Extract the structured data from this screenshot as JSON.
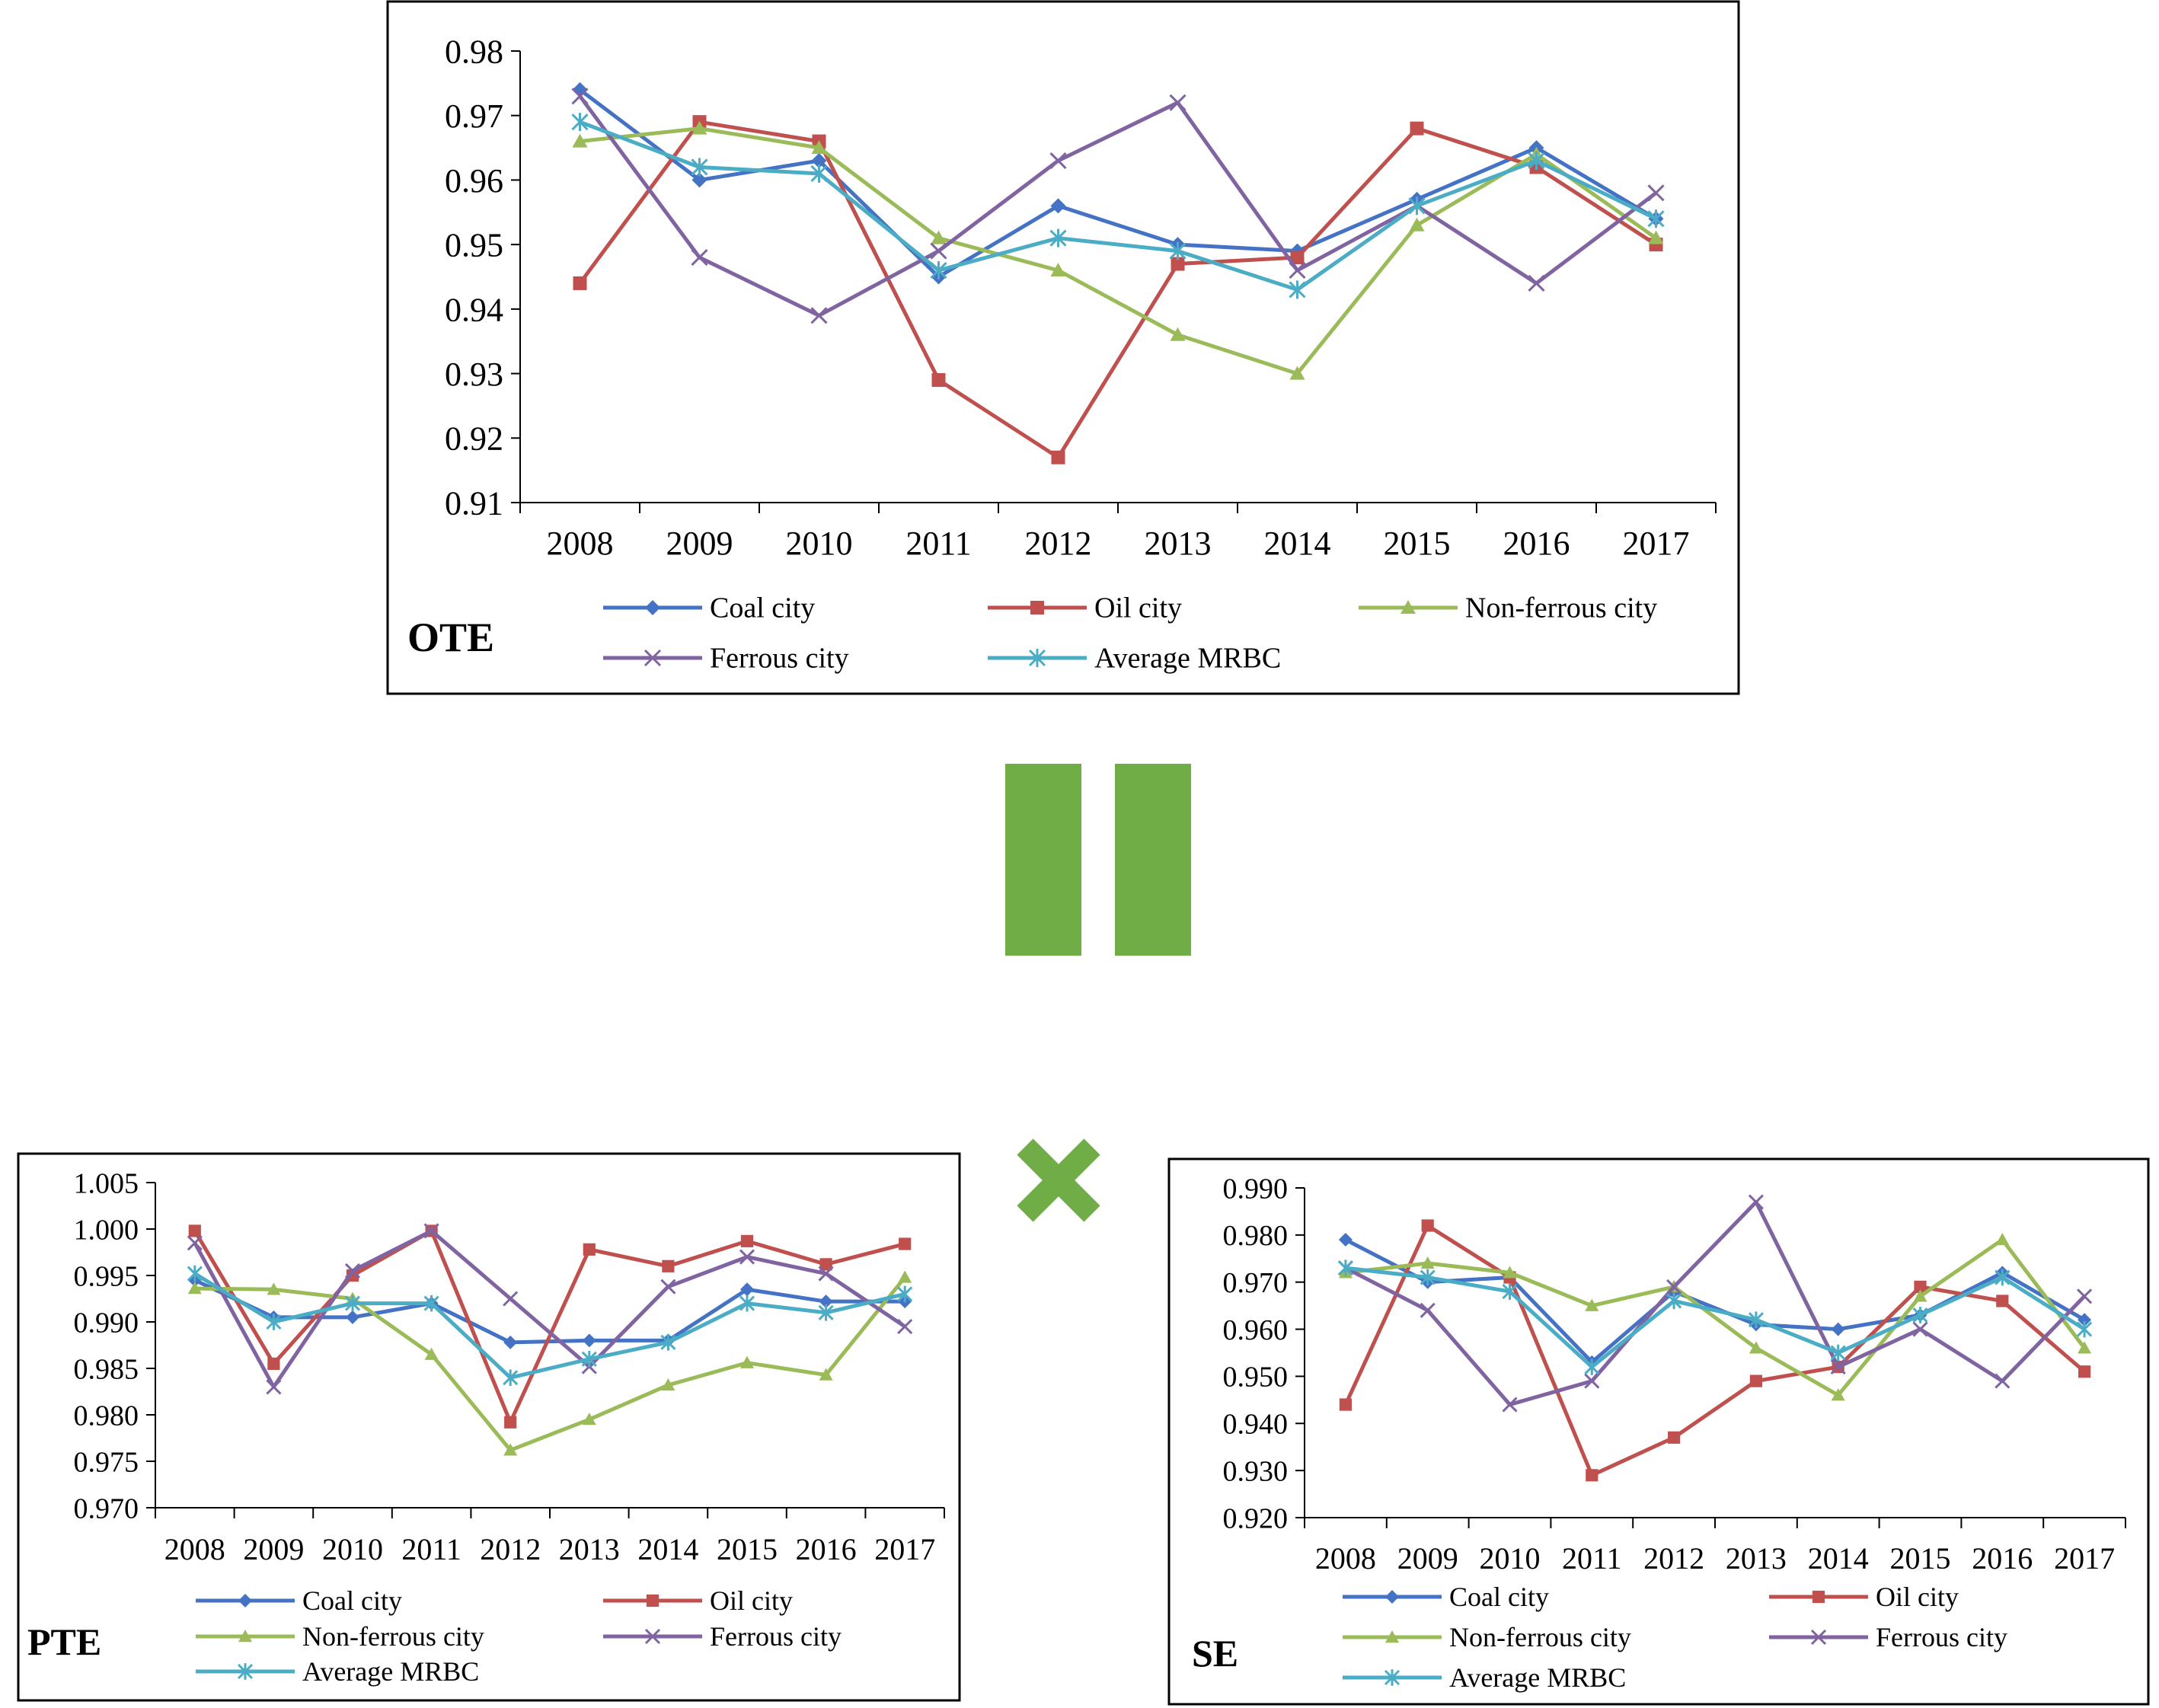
{
  "colors": {
    "coal": "#4472c4",
    "oil": "#c0504d",
    "nonferrous": "#9bbb59",
    "ferrous": "#8064a2",
    "average": "#4bacc6",
    "operator": "#70ad47",
    "axis": "#000000"
  },
  "operators": {
    "equals": "=",
    "times": "×"
  },
  "legend_labels": {
    "coal": "Coal city",
    "oil": "Oil city",
    "nonferrous": "Non-ferrous city",
    "ferrous": "Ferrous city",
    "average": "Average MRBC"
  },
  "chart_data": [
    {
      "id": "ote",
      "type": "line",
      "title": "OTE",
      "xlabel": "",
      "ylabel": "",
      "categories": [
        "2008",
        "2009",
        "2010",
        "2011",
        "2012",
        "2013",
        "2014",
        "2015",
        "2016",
        "2017"
      ],
      "ylim": [
        0.91,
        0.98
      ],
      "yticks": [
        0.91,
        0.92,
        0.93,
        0.94,
        0.95,
        0.96,
        0.97,
        0.98
      ],
      "ytick_labels": [
        "0.91",
        "0.92",
        "0.93",
        "0.94",
        "0.95",
        "0.96",
        "0.97",
        "0.98"
      ],
      "legend_position": "bottom",
      "series": [
        {
          "key": "coal",
          "name": "Coal city",
          "marker": "diamond",
          "values": [
            0.974,
            0.96,
            0.963,
            0.945,
            0.956,
            0.95,
            0.949,
            0.957,
            0.965,
            0.954
          ]
        },
        {
          "key": "oil",
          "name": "Oil city",
          "marker": "square",
          "values": [
            0.944,
            0.969,
            0.966,
            0.929,
            0.917,
            0.947,
            0.948,
            0.968,
            0.962,
            0.95
          ]
        },
        {
          "key": "nonferrous",
          "name": "Non-ferrous city",
          "marker": "triangle",
          "values": [
            0.966,
            0.968,
            0.965,
            0.951,
            0.946,
            0.936,
            0.93,
            0.953,
            0.964,
            0.951
          ]
        },
        {
          "key": "ferrous",
          "name": "Ferrous city",
          "marker": "x",
          "values": [
            0.973,
            0.948,
            0.939,
            0.949,
            0.963,
            0.972,
            0.946,
            0.956,
            0.944,
            0.958
          ]
        },
        {
          "key": "average",
          "name": "Average MRBC",
          "marker": "star",
          "values": [
            0.969,
            0.962,
            0.961,
            0.946,
            0.951,
            0.949,
            0.943,
            0.956,
            0.963,
            0.954
          ]
        }
      ]
    },
    {
      "id": "pte",
      "type": "line",
      "title": "PTE",
      "xlabel": "",
      "ylabel": "",
      "categories": [
        "2008",
        "2009",
        "2010",
        "2011",
        "2012",
        "2013",
        "2014",
        "2015",
        "2016",
        "2017"
      ],
      "ylim": [
        0.97,
        1.005
      ],
      "yticks": [
        0.97,
        0.975,
        0.98,
        0.985,
        0.99,
        0.995,
        1.0,
        1.005
      ],
      "ytick_labels": [
        "0.970",
        "0.975",
        "0.980",
        "0.985",
        "0.990",
        "0.995",
        "1.000",
        "1.005"
      ],
      "legend_position": "bottom",
      "series": [
        {
          "key": "coal",
          "name": "Coal city",
          "marker": "diamond",
          "values": [
            0.9945,
            0.9905,
            0.9905,
            0.992,
            0.9878,
            0.988,
            0.988,
            0.9935,
            0.9922,
            0.9922
          ]
        },
        {
          "key": "oil",
          "name": "Oil city",
          "marker": "square",
          "values": [
            0.9998,
            0.9855,
            0.995,
            0.9998,
            0.9792,
            0.9978,
            0.996,
            0.9987,
            0.9962,
            0.9984
          ]
        },
        {
          "key": "nonferrous",
          "name": "Non-ferrous city",
          "marker": "triangle",
          "values": [
            0.9936,
            0.9935,
            0.9925,
            0.9865,
            0.9762,
            0.9795,
            0.9832,
            0.9856,
            0.9843,
            0.9948
          ]
        },
        {
          "key": "ferrous",
          "name": "Ferrous city",
          "marker": "x",
          "values": [
            0.9985,
            0.983,
            0.9955,
            0.9998,
            0.9925,
            0.9852,
            0.9938,
            0.997,
            0.9952,
            0.9895
          ]
        },
        {
          "key": "average",
          "name": "Average MRBC",
          "marker": "star",
          "values": [
            0.9952,
            0.99,
            0.992,
            0.992,
            0.984,
            0.986,
            0.9878,
            0.992,
            0.991,
            0.993
          ]
        }
      ]
    },
    {
      "id": "se",
      "type": "line",
      "title": "SE",
      "xlabel": "",
      "ylabel": "",
      "categories": [
        "2008",
        "2009",
        "2010",
        "2011",
        "2012",
        "2013",
        "2014",
        "2015",
        "2016",
        "2017"
      ],
      "ylim": [
        0.92,
        0.99
      ],
      "yticks": [
        0.92,
        0.93,
        0.94,
        0.95,
        0.96,
        0.97,
        0.98,
        0.99
      ],
      "ytick_labels": [
        "0.920",
        "0.930",
        "0.940",
        "0.950",
        "0.960",
        "0.970",
        "0.980",
        "0.990"
      ],
      "legend_position": "bottom",
      "series": [
        {
          "key": "coal",
          "name": "Coal city",
          "marker": "diamond",
          "values": [
            0.979,
            0.97,
            0.971,
            0.953,
            0.968,
            0.961,
            0.96,
            0.963,
            0.972,
            0.962
          ]
        },
        {
          "key": "oil",
          "name": "Oil city",
          "marker": "square",
          "values": [
            0.944,
            0.982,
            0.971,
            0.929,
            0.937,
            0.949,
            0.952,
            0.969,
            0.966,
            0.951
          ]
        },
        {
          "key": "nonferrous",
          "name": "Non-ferrous city",
          "marker": "triangle",
          "values": [
            0.972,
            0.974,
            0.972,
            0.965,
            0.969,
            0.956,
            0.946,
            0.967,
            0.979,
            0.956
          ]
        },
        {
          "key": "ferrous",
          "name": "Ferrous city",
          "marker": "x",
          "values": [
            0.973,
            0.964,
            0.944,
            0.949,
            0.969,
            0.987,
            0.952,
            0.96,
            0.949,
            0.967
          ]
        },
        {
          "key": "average",
          "name": "Average MRBC",
          "marker": "star",
          "values": [
            0.973,
            0.971,
            0.968,
            0.952,
            0.966,
            0.962,
            0.955,
            0.963,
            0.971,
            0.96
          ]
        }
      ]
    }
  ]
}
